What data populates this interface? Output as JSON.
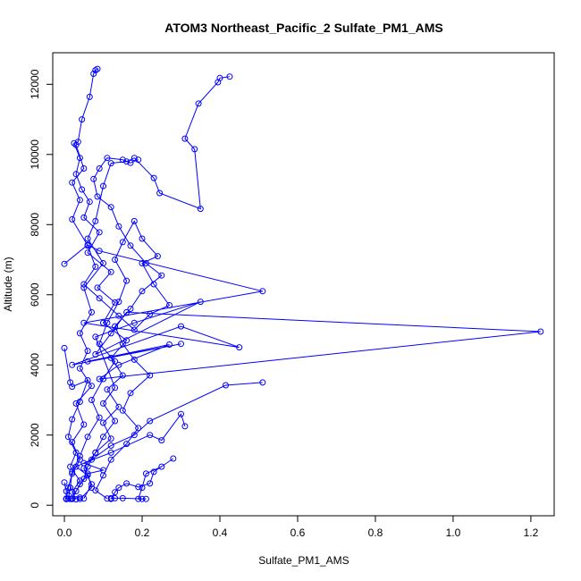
{
  "chart_data": {
    "type": "line",
    "title": "ATOM3 Northeast_Pacific_2 Sulfate_PM1_AMS",
    "xlabel": "Sulfate_PM1_AMS",
    "ylabel": "Altitude (m)",
    "xlim": [
      -0.03,
      1.26
    ],
    "ylim": [
      -300,
      12900
    ],
    "xticks": [
      0.0,
      0.2,
      0.4,
      0.6,
      0.8,
      1.0,
      1.2
    ],
    "xtick_labels": [
      "0.0",
      "0.2",
      "0.4",
      "0.6",
      "0.8",
      "1.0",
      "1.2"
    ],
    "yticks": [
      0,
      2000,
      4000,
      6000,
      8000,
      10000,
      12000
    ],
    "ytick_labels": [
      "0",
      "2000",
      "4000",
      "6000",
      "8000",
      "10000",
      "12000"
    ],
    "grid": false,
    "color": "#0000ff",
    "marker": "open-circle",
    "series": [
      {
        "values": [
          [
            0.085,
            12440
          ],
          [
            0.08,
            12400
          ],
          [
            0.075,
            12300
          ],
          [
            0.065,
            11640
          ],
          [
            0.045,
            11000
          ],
          [
            0.035,
            10360
          ],
          [
            0.025,
            10320
          ],
          [
            0.04,
            9900
          ],
          [
            0.03,
            9440
          ],
          [
            0.045,
            9000
          ],
          [
            0.065,
            8650
          ],
          [
            0.05,
            8200
          ],
          [
            0.09,
            7780
          ],
          [
            0.06,
            7200
          ],
          [
            0.12,
            6650
          ],
          [
            0.085,
            6200
          ],
          [
            0.13,
            5780
          ],
          [
            0.1,
            5200
          ],
          [
            0.16,
            4700
          ],
          [
            0.12,
            4200
          ],
          [
            0.15,
            3700
          ],
          [
            0.11,
            3300
          ],
          [
            0.14,
            2800
          ],
          [
            0.1,
            2350
          ],
          [
            0.12,
            1900
          ],
          [
            0.08,
            1500
          ],
          [
            0.06,
            1100
          ],
          [
            0.05,
            750
          ],
          [
            0.03,
            400
          ],
          [
            0.02,
            180
          ]
        ]
      },
      {
        "values": [
          [
            0.425,
            12220
          ],
          [
            0.4,
            12180
          ],
          [
            0.395,
            12060
          ],
          [
            0.345,
            11450
          ],
          [
            0.31,
            10450
          ],
          [
            0.335,
            10150
          ],
          [
            0.35,
            8450
          ],
          [
            0.245,
            8900
          ],
          [
            0.23,
            9330
          ],
          [
            0.18,
            9900
          ],
          [
            0.16,
            9800
          ],
          [
            0.12,
            9750
          ],
          [
            0.1,
            9100
          ],
          [
            0.08,
            8100
          ],
          [
            0.06,
            7600
          ],
          [
            0.1,
            6900
          ],
          [
            0.05,
            6200
          ],
          [
            0.07,
            5500
          ],
          [
            0.04,
            4900
          ],
          [
            0.06,
            4400
          ],
          [
            0.04,
            3900
          ],
          [
            0.07,
            3400
          ],
          [
            0.03,
            2900
          ],
          [
            0.05,
            2300
          ],
          [
            0.02,
            1800
          ],
          [
            0.04,
            1300
          ],
          [
            0.02,
            900
          ],
          [
            0.01,
            500
          ],
          [
            0.005,
            180
          ]
        ]
      },
      {
        "values": [
          [
            0.03,
            10270
          ],
          [
            0.05,
            9600
          ],
          [
            0.02,
            9200
          ],
          [
            0.04,
            8700
          ],
          [
            0.02,
            8150
          ],
          [
            0.06,
            7400
          ],
          [
            0.08,
            6800
          ],
          [
            0.05,
            6300
          ],
          [
            0.09,
            5900
          ],
          [
            0.14,
            5400
          ],
          [
            0.18,
            5000
          ],
          [
            0.22,
            5450
          ],
          [
            0.27,
            5700
          ],
          [
            0.23,
            6300
          ],
          [
            0.2,
            6900
          ],
          [
            0.24,
            7100
          ],
          [
            0.2,
            7600
          ],
          [
            0.18,
            8100
          ],
          [
            0.15,
            7500
          ],
          [
            0.13,
            7000
          ],
          [
            0.16,
            6400
          ],
          [
            0.14,
            5800
          ],
          [
            0.11,
            5200
          ],
          [
            0.09,
            4600
          ],
          [
            0.13,
            4100
          ],
          [
            0.1,
            3600
          ],
          [
            0.07,
            3000
          ],
          [
            0.09,
            2500
          ],
          [
            0.06,
            1950
          ],
          [
            0.04,
            1400
          ],
          [
            0.02,
            950
          ],
          [
            0.015,
            500
          ],
          [
            0.01,
            190
          ]
        ]
      },
      {
        "values": [
          [
            0.19,
            9850
          ],
          [
            0.17,
            9760
          ],
          [
            0.15,
            9850
          ],
          [
            0.11,
            9900
          ],
          [
            0.09,
            9600
          ],
          [
            0.075,
            9300
          ],
          [
            0.085,
            8800
          ],
          [
            0.12,
            8500
          ],
          [
            0.14,
            7950
          ],
          [
            0.17,
            7400
          ],
          [
            0.21,
            6900
          ],
          [
            0.25,
            6550
          ],
          [
            0.2,
            6100
          ],
          [
            0.17,
            5600
          ],
          [
            0.13,
            5100
          ],
          [
            0.15,
            4600
          ],
          [
            0.18,
            4150
          ],
          [
            0.22,
            3700
          ],
          [
            0.17,
            3200
          ],
          [
            0.15,
            2700
          ],
          [
            0.19,
            2200
          ],
          [
            0.16,
            1750
          ],
          [
            0.12,
            1300
          ],
          [
            0.1,
            850
          ],
          [
            0.08,
            420
          ],
          [
            0.11,
            190
          ]
        ]
      },
      {
        "values": [
          [
            0.0,
            6880
          ],
          [
            0.06,
            7420
          ],
          [
            0.09,
            7250
          ],
          [
            0.51,
            6100
          ],
          [
            0.05,
            5200
          ],
          [
            0.45,
            4500
          ],
          [
            0.3,
            5100
          ],
          [
            0.02,
            4000
          ],
          [
            0.3,
            4600
          ],
          [
            0.06,
            4100
          ],
          [
            0.27,
            4580
          ],
          [
            0.14,
            4000
          ],
          [
            0.09,
            3600
          ],
          [
            1.225,
            4950
          ],
          [
            0.16,
            5500
          ],
          [
            0.12,
            4900
          ],
          [
            0.08,
            4300
          ],
          [
            0.35,
            5800
          ],
          [
            0.18,
            5200
          ],
          [
            0.08,
            4800
          ],
          [
            0.13,
            3350
          ],
          [
            0.1,
            2900
          ],
          [
            0.13,
            2400
          ],
          [
            0.1,
            1950
          ],
          [
            0.08,
            1500
          ],
          [
            0.05,
            1050
          ],
          [
            0.07,
            600
          ],
          [
            0.05,
            190
          ]
        ]
      },
      {
        "values": [
          [
            0.0,
            4480
          ],
          [
            0.015,
            3500
          ],
          [
            0.02,
            3380
          ],
          [
            0.06,
            3560
          ],
          [
            0.04,
            2950
          ],
          [
            0.02,
            2450
          ],
          [
            0.01,
            1950
          ],
          [
            0.03,
            1500
          ],
          [
            0.015,
            1100
          ],
          [
            0.04,
            700
          ],
          [
            0.02,
            380
          ],
          [
            0.03,
            170
          ]
        ]
      },
      {
        "values": [
          [
            0.51,
            3500
          ],
          [
            0.415,
            3420
          ],
          [
            0.22,
            2400
          ],
          [
            0.18,
            2000
          ],
          [
            0.12,
            1700
          ],
          [
            0.07,
            1300
          ],
          [
            0.03,
            1100
          ],
          [
            0.06,
            850
          ],
          [
            0.04,
            600
          ],
          [
            0.02,
            180
          ]
        ]
      },
      {
        "values": [
          [
            0.31,
            2250
          ],
          [
            0.3,
            2600
          ],
          [
            0.25,
            1850
          ],
          [
            0.22,
            2000
          ],
          [
            0.12,
            1500
          ],
          [
            0.05,
            1200
          ],
          [
            0.1,
            1000
          ],
          [
            0.06,
            900
          ],
          [
            0.07,
            500
          ],
          [
            0.04,
            180
          ]
        ]
      },
      {
        "values": [
          [
            0.28,
            1330
          ],
          [
            0.23,
            950
          ],
          [
            0.22,
            620
          ],
          [
            0.19,
            520
          ],
          [
            0.16,
            620
          ],
          [
            0.14,
            500
          ],
          [
            0.13,
            370
          ],
          [
            0.12,
            180
          ]
        ]
      },
      {
        "values": [
          [
            0.25,
            1100
          ],
          [
            0.21,
            900
          ],
          [
            0.2,
            500
          ],
          [
            0.19,
            180
          ],
          [
            0.2,
            180
          ],
          [
            0.21,
            180
          ],
          [
            0.15,
            200
          ],
          [
            0.13,
            200
          ],
          [
            0.12,
            200
          ]
        ]
      },
      {
        "values": [
          [
            0.0,
            650
          ],
          [
            0.005,
            400
          ],
          [
            0.005,
            190
          ],
          [
            0.015,
            180
          ],
          [
            0.02,
            195
          ],
          [
            0.04,
            220
          ],
          [
            0.005,
            175
          ]
        ]
      }
    ]
  }
}
